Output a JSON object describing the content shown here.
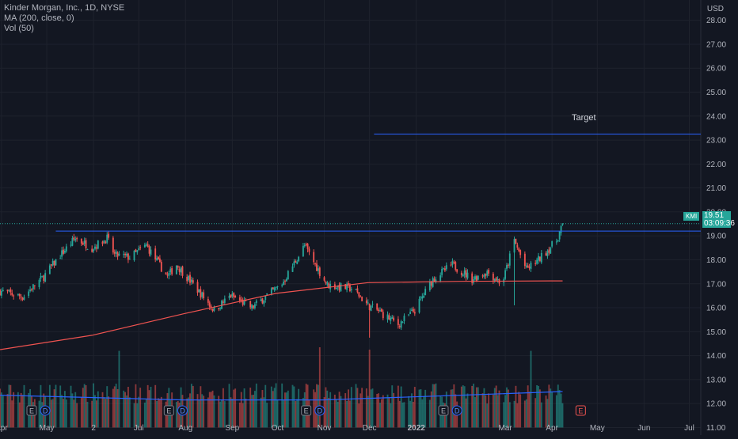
{
  "legend": {
    "symbol": "Kinder Morgan, Inc., 1D, NYSE",
    "ma": "MA (200, close, 0)",
    "vol": "Vol (50)"
  },
  "currency": "USD",
  "ticker": "KMI",
  "last_price": "19.51",
  "countdown": "03:09:36",
  "target_label": "Target",
  "colors": {
    "background": "#131722",
    "up": "#26a69a",
    "down": "#ef5350",
    "ma": "#ef5350",
    "vol_ma": "#2962ff",
    "lines": "#2962ff",
    "text": "#b2b5be"
  },
  "event_markers": [
    "E",
    "D",
    "E",
    "D",
    "E",
    "D",
    "E",
    "D",
    "E"
  ],
  "chart_data": {
    "type": "candlestick",
    "y_axis": {
      "ticks": [
        "11.00",
        "12.00",
        "13.00",
        "14.00",
        "15.00",
        "16.00",
        "17.00",
        "18.00",
        "19.00",
        "20.00",
        "21.00",
        "22.00",
        "23.00",
        "24.00",
        "25.00",
        "26.00",
        "27.00",
        "28.00"
      ],
      "range": [
        10.85,
        28.65
      ],
      "grid": true
    },
    "x_axis": {
      "ticks": [
        "Apr",
        "May",
        "2",
        "Jul",
        "Aug",
        "Sep",
        "Oct",
        "Nov",
        "Dec",
        "2022",
        "Mar",
        "Apr",
        "May",
        "Jun",
        "Jul"
      ],
      "date_range": [
        "2021-03-31",
        "2022-07-06"
      ],
      "tick_dates": [
        "2021-04-01",
        "2021-05-01",
        "2021-06-01",
        "2021-07-01",
        "2021-08-01",
        "2021-09-01",
        "2021-10-01",
        "2021-11-01",
        "2021-12-01",
        "2022-01-01",
        "2022-03-01",
        "2022-04-01",
        "2022-05-01",
        "2022-06-01",
        "2022-07-01"
      ]
    },
    "price_path": [
      [
        "2021-03-31",
        16.7
      ],
      [
        "2021-04-15",
        16.45
      ],
      [
        "2021-04-29",
        17.3
      ],
      [
        "2021-05-10",
        18.2
      ],
      [
        "2021-05-20",
        18.9
      ],
      [
        "2021-05-31",
        18.5
      ],
      [
        "2021-06-10",
        18.9
      ],
      [
        "2021-06-15",
        18.2
      ],
      [
        "2021-06-25",
        18.1
      ],
      [
        "2021-07-06",
        18.6
      ],
      [
        "2021-07-20",
        17.3
      ],
      [
        "2021-07-26",
        17.8
      ],
      [
        "2021-08-03",
        17.2
      ],
      [
        "2021-08-20",
        15.9
      ],
      [
        "2021-08-31",
        16.5
      ],
      [
        "2021-09-14",
        16.0
      ],
      [
        "2021-09-22",
        16.4
      ],
      [
        "2021-10-04",
        17.0
      ],
      [
        "2021-10-19",
        18.6
      ],
      [
        "2021-10-26",
        17.8
      ],
      [
        "2021-11-03",
        16.95
      ],
      [
        "2021-11-20",
        16.8
      ],
      [
        "2021-11-30",
        16.1
      ],
      [
        "2021-12-06",
        15.9
      ],
      [
        "2021-12-20",
        15.3
      ],
      [
        "2021-12-31",
        15.9
      ],
      [
        "2022-01-12",
        17.2
      ],
      [
        "2022-01-25",
        17.8
      ],
      [
        "2022-02-07",
        17.2
      ],
      [
        "2022-02-17",
        17.5
      ],
      [
        "2022-02-27",
        17.0
      ],
      [
        "2022-03-07",
        18.8
      ],
      [
        "2022-03-15",
        17.6
      ],
      [
        "2022-03-23",
        18.0
      ],
      [
        "2022-04-04",
        18.8
      ],
      [
        "2022-04-08",
        19.51
      ]
    ],
    "ma_200": [
      [
        "2021-03-31",
        14.25
      ],
      [
        "2021-05-31",
        14.85
      ],
      [
        "2021-07-31",
        15.75
      ],
      [
        "2021-09-30",
        16.6
      ],
      [
        "2021-11-30",
        17.05
      ],
      [
        "2022-01-31",
        17.1
      ],
      [
        "2022-03-31",
        17.12
      ],
      [
        "2022-04-08",
        17.12
      ]
    ],
    "resistance_level": 19.2,
    "resistance_from": "2021-05-07",
    "target_level": 23.25,
    "target_from": "2021-12-04",
    "volume_scale": 13.0,
    "volume_ma": [
      [
        "2021-03-31",
        12.35
      ],
      [
        "2021-07-31",
        12.15
      ],
      [
        "2021-10-31",
        12.15
      ],
      [
        "2022-01-31",
        12.35
      ],
      [
        "2022-04-08",
        12.5
      ]
    ]
  }
}
